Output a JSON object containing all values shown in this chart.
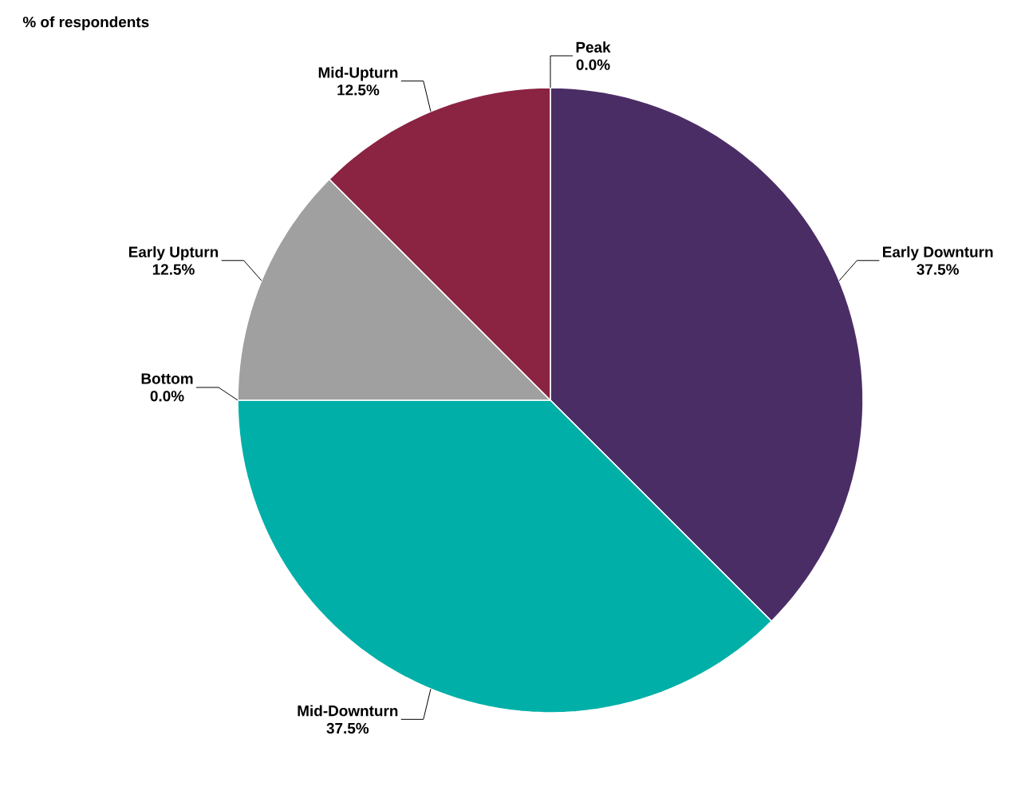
{
  "chart_data": {
    "type": "pie",
    "title": "% of respondents",
    "categories": [
      "Peak",
      "Early Downturn",
      "Mid-Downturn",
      "Bottom",
      "Early Upturn",
      "Mid-Upturn"
    ],
    "values": [
      0.0,
      37.5,
      37.5,
      0.0,
      12.5,
      12.5
    ],
    "value_labels": [
      "0.0%",
      "37.5%",
      "37.5%",
      "0.0%",
      "12.5%",
      "12.5%"
    ],
    "colors": [
      "#6b8fc7",
      "#4b2d66",
      "#00b0a8",
      "#e07b39",
      "#a0a0a0",
      "#8b2343"
    ]
  }
}
